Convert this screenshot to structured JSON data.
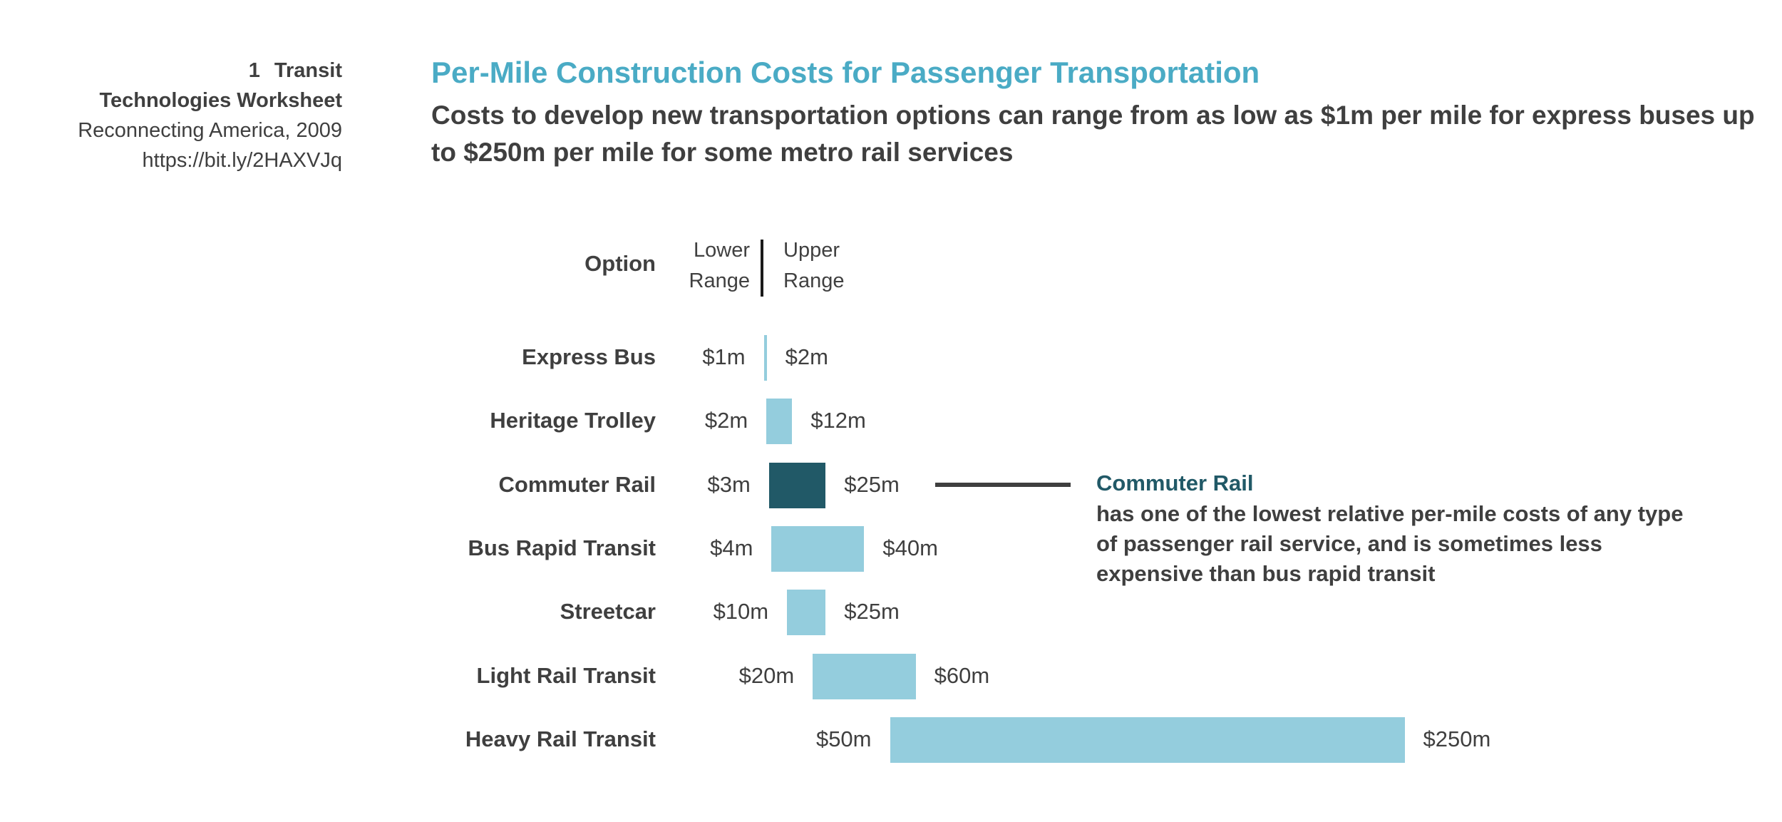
{
  "source": {
    "number": "1",
    "line1": "Transit",
    "line2": "Technologies Worksheet",
    "line3": "Reconnecting America, 2009",
    "line4": "https://bit.ly/2HAXVJq"
  },
  "chart_data": {
    "type": "bar",
    "subtype": "floating-range",
    "title": "Per-Mile Construction Costs for Passenger Transportation",
    "subtitle": "Costs to develop new transportation options can range from as low as $1m per mile for express buses up to $250m per mile for some metro rail services",
    "unit": "$m per mile",
    "header": {
      "option": "Option",
      "lower": "Lower Range",
      "upper": "Upper Range"
    },
    "categories": [
      "Express Bus",
      "Heritage Trolley",
      "Commuter Rail",
      "Bus Rapid Transit",
      "Streetcar",
      "Light Rail Transit",
      "Heavy Rail Transit"
    ],
    "series": [
      {
        "name": "Lower Range",
        "values": [
          1,
          2,
          3,
          4,
          10,
          20,
          50
        ]
      },
      {
        "name": "Upper Range",
        "values": [
          2,
          12,
          25,
          40,
          25,
          60,
          250
        ]
      }
    ],
    "lower_labels": [
      "$1m",
      "$2m",
      "$3m",
      "$4m",
      "$10m",
      "$20m",
      "$50m"
    ],
    "upper_labels": [
      "$2m",
      "$12m",
      "$25m",
      "$40m",
      "$25m",
      "$60m",
      "$250m"
    ],
    "highlight": "Commuter Rail",
    "annotation": {
      "title": "Commuter Rail",
      "text": "has one of the lowest relative per-mile costs of any type of passenger rail service, and is sometimes less expensive than bus rapid transit"
    }
  },
  "colors": {
    "title": "#4aabc5",
    "bar": "#94cddd",
    "highlight": "#215967",
    "text": "#3f3f3f"
  }
}
